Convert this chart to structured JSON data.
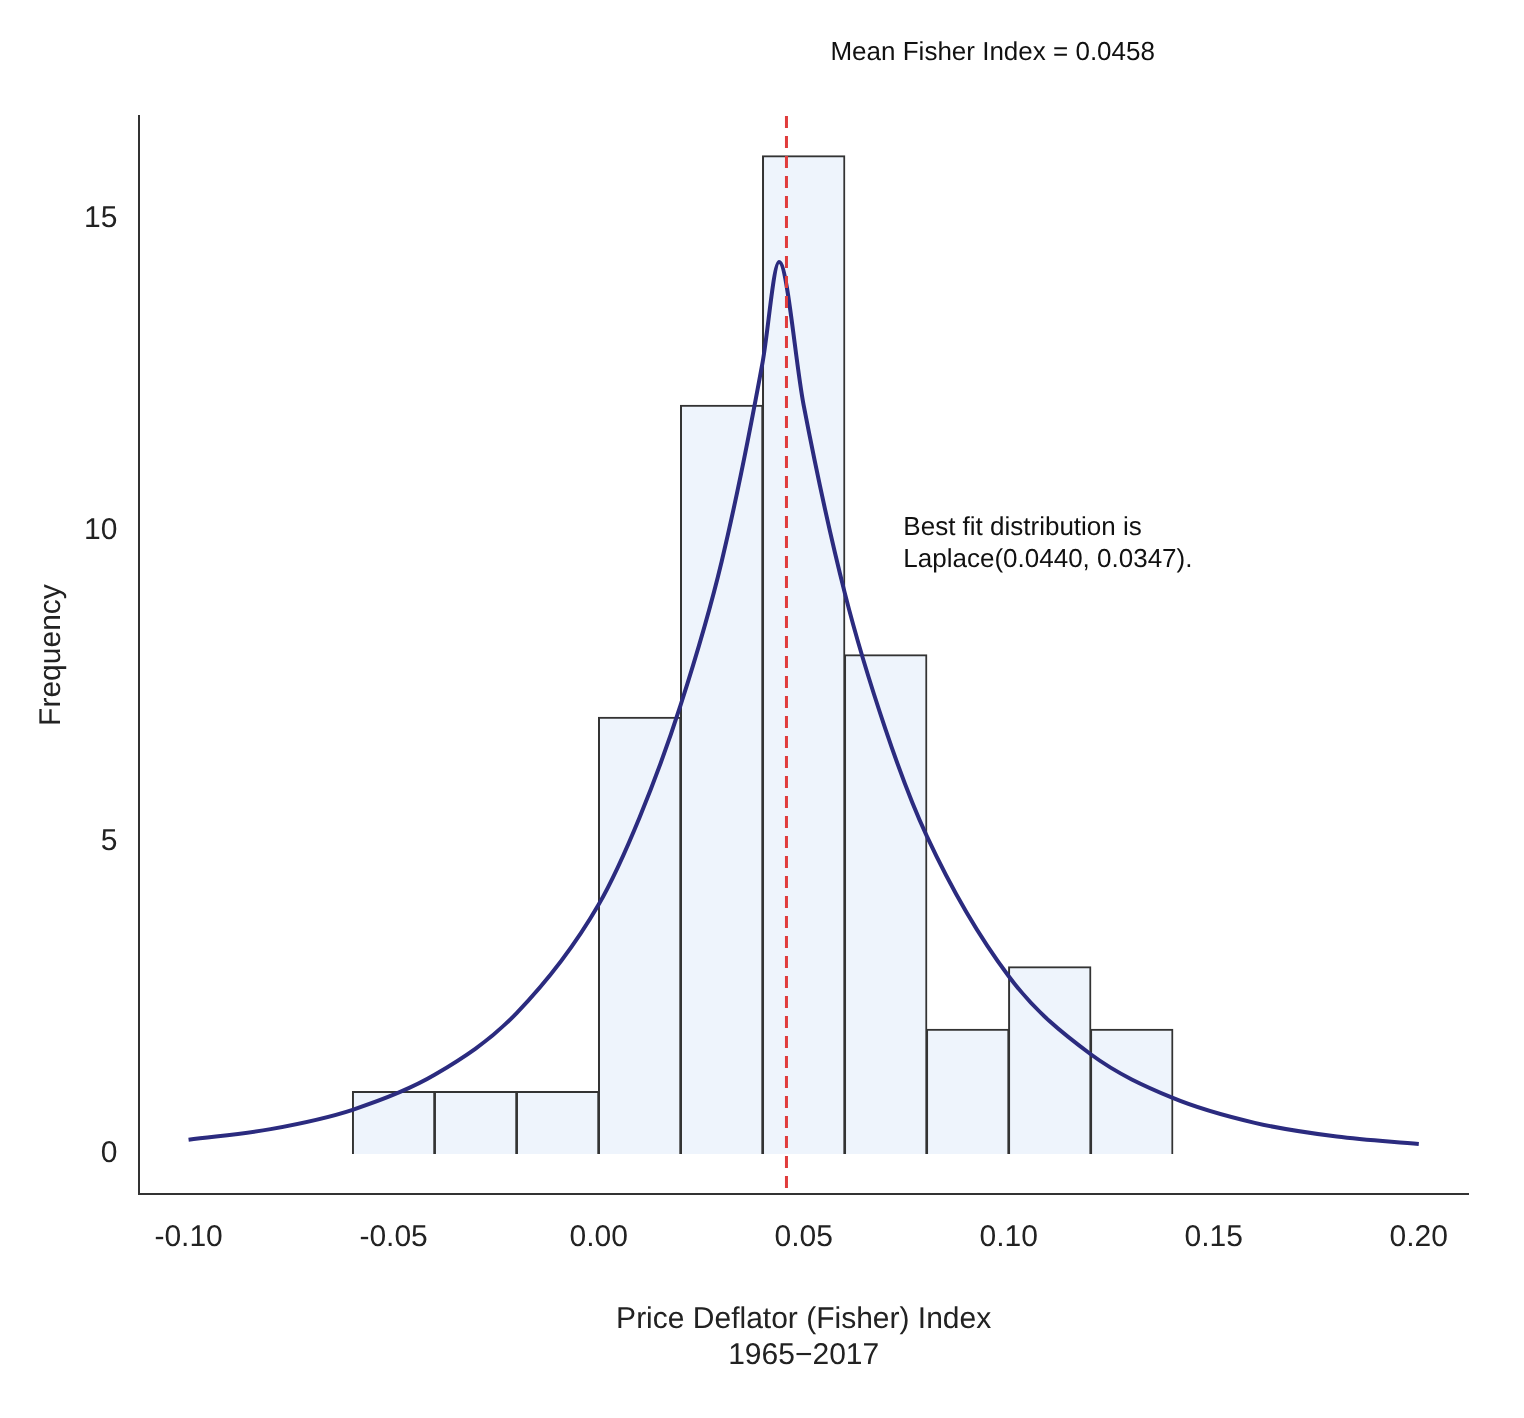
{
  "chart_data": {
    "type": "histogram",
    "xlabel": "Price Deflator (Fisher) Index\n1965−2017",
    "ylabel": "Frequency",
    "bins": [
      -0.06,
      -0.04,
      -0.02,
      0.0,
      0.02,
      0.04,
      0.06,
      0.08,
      0.1,
      0.12,
      0.14
    ],
    "values": [
      1,
      1,
      1,
      7,
      12,
      16,
      8,
      2,
      3,
      2
    ],
    "color": "#eef4fc",
    "series": [
      {
        "type": "line",
        "color": "#2b2b7f",
        "x": [
          -0.1,
          -0.08,
          -0.06,
          -0.04,
          -0.02,
          0.0,
          0.01,
          0.02,
          0.03,
          0.04,
          0.044,
          0.05,
          0.06,
          0.07,
          0.08,
          0.1,
          0.12,
          0.14,
          0.16,
          0.18,
          0.2
        ],
        "values": [
          0.23,
          0.4,
          0.71,
          1.27,
          2.26,
          4.0,
          5.4,
          7.2,
          9.5,
          12.7,
          14.3,
          12.0,
          9.0,
          6.8,
          5.1,
          2.85,
          1.6,
          0.9,
          0.5,
          0.28,
          0.16
        ]
      }
    ],
    "ref_lines": [
      {
        "axis": "x",
        "value": 0.0458,
        "label": "Mean Fisher Index = 0.0458",
        "color": "#e03c3c",
        "line_style": "dashed"
      }
    ],
    "annotations": [
      "Best fit distribution is\nLaplace(0.0440, 0.0347)."
    ],
    "xlim": [
      -0.112,
      0.212
    ],
    "ylim": [
      -0.64,
      16.64
    ],
    "xticks": [
      {
        "value": -0.1,
        "label": "-0.10"
      },
      {
        "value": -0.05,
        "label": "-0.05"
      },
      {
        "value": 0,
        "label": "0.00"
      },
      {
        "value": 0.05,
        "label": "0.05"
      },
      {
        "value": 0.1,
        "label": "0.10"
      },
      {
        "value": 0.15,
        "label": "0.15"
      },
      {
        "value": 0.2,
        "label": "0.20"
      }
    ],
    "yticks": [
      0,
      5,
      10,
      15
    ],
    "grid": false,
    "legend": false
  }
}
